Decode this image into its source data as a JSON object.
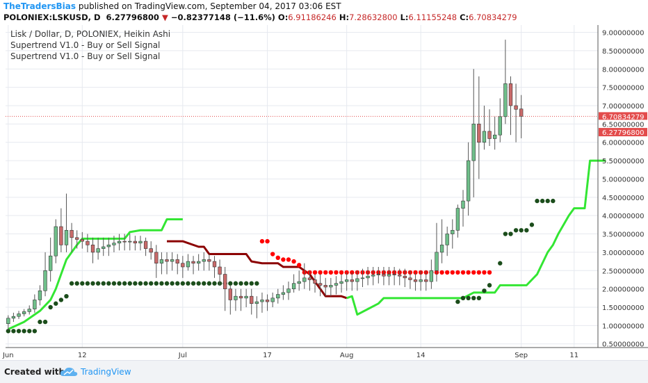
{
  "header": {
    "brand": "TheTradersBias",
    "published": " published on TradingView.com, September 04, 2017 03:06 EST",
    "symbol": "POLONIEX:LSKUSD, D",
    "last": "6.27796800",
    "change": "−0.82377148 (−11.6%)",
    "o_label": "O:",
    "o_value": "6.91186246",
    "h_label": "H:",
    "h_value": "7.28632800",
    "l_label": "L:",
    "l_value": "6.11155248",
    "c_label": "C:",
    "c_value": "6.70834279"
  },
  "legend": {
    "line1": "Lisk / Dollar, D, POLONIEX, Heikin Ashi",
    "line2": "Supertrend V1.0 - Buy or Sell Signal",
    "line3": "Supertrend V1.0 - Buy or Sell Signal"
  },
  "footer": {
    "created": "Created with",
    "brand": "TradingView"
  },
  "colors": {
    "up": "#6fbf8a",
    "down": "#c96a6a",
    "wick": "#555555",
    "supertrend_up": "#33e633",
    "supertrend_down": "#8b0000",
    "dots_up": "#1b4d1b",
    "dots_down": "#ff0000",
    "price_tag1": "#e34c4c",
    "price_tag2": "#e34c4c"
  },
  "chart_data": {
    "type": "candlestick",
    "style": "Heikin Ashi",
    "ylim": [
      0.4,
      9.2
    ],
    "y_ticks": [
      "0.50000000",
      "1.00000000",
      "1.50000000",
      "2.00000000",
      "2.50000000",
      "3.00000000",
      "3.50000000",
      "4.00000000",
      "4.50000000",
      "5.00000000",
      "5.50000000",
      "6.00000000",
      "6.50000000",
      "7.00000000",
      "7.50000000",
      "8.00000000",
      "8.50000000",
      "9.00000000"
    ],
    "x_ticks": [
      {
        "label": "Jun",
        "i": 0
      },
      {
        "label": "12",
        "i": 14
      },
      {
        "label": "Jul",
        "i": 33
      },
      {
        "label": "17",
        "i": 49
      },
      {
        "label": "Aug",
        "i": 64
      },
      {
        "label": "14",
        "i": 78
      },
      {
        "label": "Sep",
        "i": 97
      },
      {
        "label": "11",
        "i": 107
      }
    ],
    "n_slots": 112,
    "price_labels": [
      "6.70834279",
      "6.50000000",
      "6.27796800"
    ],
    "price_label_values": [
      6.708,
      6.5,
      6.278
    ],
    "candles": [
      [
        1.05,
        1.2,
        0.88,
        1.28
      ],
      [
        1.2,
        1.25,
        1.1,
        1.35
      ],
      [
        1.25,
        1.32,
        1.18,
        1.4
      ],
      [
        1.32,
        1.38,
        1.25,
        1.45
      ],
      [
        1.38,
        1.45,
        1.3,
        1.55
      ],
      [
        1.45,
        1.7,
        1.35,
        1.85
      ],
      [
        1.7,
        1.95,
        1.55,
        2.1
      ],
      [
        1.95,
        2.5,
        1.8,
        3.0
      ],
      [
        2.5,
        2.9,
        2.2,
        3.4
      ],
      [
        2.9,
        3.7,
        2.7,
        3.9
      ],
      [
        3.7,
        3.2,
        3.0,
        4.2
      ],
      [
        3.2,
        3.6,
        3.0,
        4.6
      ],
      [
        3.6,
        3.4,
        3.0,
        3.8
      ],
      [
        3.4,
        3.35,
        3.1,
        3.6
      ],
      [
        3.35,
        3.3,
        3.1,
        3.55
      ],
      [
        3.3,
        3.2,
        3.0,
        3.5
      ],
      [
        3.2,
        3.0,
        2.7,
        3.4
      ],
      [
        3.0,
        3.1,
        2.8,
        3.4
      ],
      [
        3.1,
        3.15,
        2.9,
        3.4
      ],
      [
        3.15,
        3.2,
        2.9,
        3.4
      ],
      [
        3.2,
        3.25,
        3.0,
        3.45
      ],
      [
        3.25,
        3.3,
        3.05,
        3.5
      ],
      [
        3.3,
        3.28,
        3.05,
        3.5
      ],
      [
        3.28,
        3.3,
        3.05,
        3.5
      ],
      [
        3.3,
        3.25,
        3.05,
        3.45
      ],
      [
        3.25,
        3.3,
        3.05,
        3.45
      ],
      [
        3.3,
        3.1,
        2.9,
        3.4
      ],
      [
        3.1,
        3.0,
        2.8,
        3.3
      ],
      [
        3.0,
        2.7,
        2.3,
        3.2
      ],
      [
        2.7,
        2.8,
        2.4,
        3.0
      ],
      [
        2.8,
        2.75,
        2.4,
        3.0
      ],
      [
        2.75,
        2.8,
        2.5,
        3.0
      ],
      [
        2.8,
        2.7,
        2.4,
        2.95
      ],
      [
        2.7,
        2.6,
        2.3,
        2.9
      ],
      [
        2.6,
        2.75,
        2.5,
        2.95
      ],
      [
        2.75,
        2.7,
        2.4,
        2.9
      ],
      [
        2.7,
        2.75,
        2.5,
        2.95
      ],
      [
        2.75,
        2.8,
        2.5,
        3.0
      ],
      [
        2.8,
        2.75,
        2.5,
        2.95
      ],
      [
        2.75,
        2.6,
        2.3,
        2.9
      ],
      [
        2.6,
        2.4,
        2.1,
        2.8
      ],
      [
        2.4,
        2.0,
        1.4,
        2.6
      ],
      [
        2.0,
        1.7,
        1.3,
        2.1
      ],
      [
        1.7,
        1.8,
        1.4,
        2.0
      ],
      [
        1.8,
        1.75,
        1.4,
        2.0
      ],
      [
        1.75,
        1.8,
        1.5,
        2.0
      ],
      [
        1.8,
        1.6,
        1.3,
        2.0
      ],
      [
        1.6,
        1.65,
        1.2,
        1.8
      ],
      [
        1.65,
        1.7,
        1.35,
        1.9
      ],
      [
        1.7,
        1.65,
        1.4,
        1.85
      ],
      [
        1.65,
        1.75,
        1.5,
        1.9
      ],
      [
        1.75,
        1.85,
        1.6,
        2.0
      ],
      [
        1.85,
        1.9,
        1.7,
        2.1
      ],
      [
        1.9,
        2.0,
        1.7,
        2.2
      ],
      [
        2.0,
        2.15,
        1.9,
        2.4
      ],
      [
        2.15,
        2.2,
        1.95,
        2.5
      ],
      [
        2.2,
        2.3,
        2.0,
        2.7
      ],
      [
        2.3,
        2.25,
        1.95,
        2.5
      ],
      [
        2.25,
        2.15,
        1.9,
        2.4
      ],
      [
        2.15,
        2.1,
        1.8,
        2.4
      ],
      [
        2.1,
        2.05,
        1.8,
        2.3
      ],
      [
        2.05,
        2.1,
        1.8,
        2.3
      ],
      [
        2.1,
        2.15,
        1.85,
        2.35
      ],
      [
        2.15,
        2.2,
        1.9,
        2.4
      ],
      [
        2.2,
        2.25,
        1.95,
        2.45
      ],
      [
        2.25,
        2.2,
        1.95,
        2.45
      ],
      [
        2.2,
        2.28,
        1.95,
        2.5
      ],
      [
        2.28,
        2.3,
        2.05,
        2.55
      ],
      [
        2.3,
        2.35,
        2.1,
        2.6
      ],
      [
        2.35,
        2.38,
        2.1,
        2.6
      ],
      [
        2.38,
        2.4,
        2.15,
        2.6
      ],
      [
        2.4,
        2.35,
        2.1,
        2.6
      ],
      [
        2.35,
        2.4,
        2.1,
        2.6
      ],
      [
        2.4,
        2.38,
        2.1,
        2.6
      ],
      [
        2.38,
        2.35,
        2.1,
        2.55
      ],
      [
        2.35,
        2.3,
        2.05,
        2.55
      ],
      [
        2.3,
        2.25,
        2.0,
        2.5
      ],
      [
        2.25,
        2.2,
        1.95,
        2.45
      ],
      [
        2.2,
        2.25,
        1.95,
        2.5
      ],
      [
        2.25,
        2.2,
        1.95,
        2.5
      ],
      [
        2.2,
        2.5,
        2.0,
        2.8
      ],
      [
        2.5,
        3.0,
        2.2,
        3.8
      ],
      [
        3.0,
        3.2,
        2.7,
        3.9
      ],
      [
        3.2,
        3.5,
        2.9,
        3.7
      ],
      [
        3.5,
        3.6,
        3.1,
        3.9
      ],
      [
        3.6,
        4.2,
        3.4,
        4.3
      ],
      [
        4.2,
        4.4,
        3.7,
        4.7
      ],
      [
        4.4,
        5.5,
        4.0,
        6.0
      ],
      [
        5.5,
        6.5,
        4.5,
        8.0
      ],
      [
        6.5,
        6.0,
        5.0,
        7.8
      ],
      [
        6.0,
        6.3,
        5.8,
        7.0
      ],
      [
        6.3,
        6.1,
        5.9,
        6.9
      ],
      [
        6.1,
        6.2,
        5.8,
        6.7
      ],
      [
        6.2,
        6.7,
        6.0,
        7.2
      ],
      [
        6.7,
        7.6,
        6.5,
        8.8
      ],
      [
        7.6,
        7.0,
        6.2,
        7.8
      ],
      [
        7.0,
        6.9,
        6.0,
        7.6
      ],
      [
        6.91,
        6.71,
        6.11,
        7.29
      ]
    ],
    "supertrend_segments": [
      {
        "trend": "up",
        "points": [
          [
            0,
            0.9
          ],
          [
            3,
            1.1
          ],
          [
            6,
            1.4
          ],
          [
            8,
            1.7
          ],
          [
            9,
            2.0
          ],
          [
            10,
            2.4
          ],
          [
            11,
            2.8
          ],
          [
            12,
            3.0
          ],
          [
            13,
            3.2
          ],
          [
            14,
            3.37
          ],
          [
            22,
            3.37
          ],
          [
            23,
            3.55
          ],
          [
            25,
            3.6
          ],
          [
            29,
            3.6
          ],
          [
            30,
            3.9
          ],
          [
            33,
            3.9
          ]
        ]
      },
      {
        "trend": "down",
        "points": [
          [
            30,
            3.3
          ],
          [
            33,
            3.3
          ],
          [
            36,
            3.15
          ],
          [
            37,
            3.15
          ],
          [
            38,
            2.95
          ],
          [
            45,
            2.95
          ],
          [
            46,
            2.75
          ],
          [
            48,
            2.7
          ],
          [
            51,
            2.7
          ],
          [
            52,
            2.6
          ],
          [
            55,
            2.6
          ],
          [
            57,
            2.4
          ],
          [
            58,
            2.2
          ],
          [
            59,
            2.0
          ],
          [
            60,
            1.8
          ],
          [
            63,
            1.8
          ],
          [
            64,
            1.75
          ]
        ]
      },
      {
        "trend": "up",
        "points": [
          [
            64,
            1.75
          ],
          [
            65,
            1.8
          ],
          [
            66,
            1.3
          ],
          [
            68,
            1.45
          ],
          [
            70,
            1.6
          ],
          [
            71,
            1.75
          ],
          [
            76,
            1.75
          ],
          [
            79,
            1.75
          ],
          [
            82,
            1.75
          ],
          [
            86,
            1.75
          ],
          [
            88,
            1.9
          ],
          [
            92,
            1.9
          ],
          [
            93,
            2.1
          ],
          [
            98,
            2.1
          ],
          [
            100,
            2.4
          ],
          [
            101,
            2.7
          ],
          [
            102,
            3.0
          ],
          [
            103,
            3.2
          ],
          [
            104,
            3.5
          ],
          [
            105,
            3.75
          ],
          [
            106,
            4.0
          ],
          [
            107,
            4.2
          ],
          [
            109,
            4.2
          ],
          [
            110,
            5.5
          ],
          [
            113,
            5.5
          ]
        ]
      }
    ],
    "dot_series": [
      {
        "trend": "up",
        "points": [
          [
            0,
            0.85
          ],
          [
            1,
            0.85
          ],
          [
            2,
            0.85
          ],
          [
            3,
            0.85
          ],
          [
            4,
            0.85
          ],
          [
            5,
            0.85
          ],
          [
            6,
            1.1
          ],
          [
            7,
            1.1
          ],
          [
            8,
            1.5
          ],
          [
            9,
            1.6
          ],
          [
            10,
            1.7
          ],
          [
            11,
            1.8
          ],
          [
            12,
            2.15
          ],
          [
            13,
            2.15
          ],
          [
            14,
            2.15
          ],
          [
            15,
            2.15
          ],
          [
            16,
            2.15
          ],
          [
            17,
            2.15
          ],
          [
            18,
            2.15
          ],
          [
            19,
            2.15
          ],
          [
            20,
            2.15
          ],
          [
            21,
            2.15
          ],
          [
            22,
            2.15
          ],
          [
            23,
            2.15
          ],
          [
            24,
            2.15
          ],
          [
            25,
            2.15
          ],
          [
            26,
            2.15
          ],
          [
            27,
            2.15
          ],
          [
            28,
            2.15
          ],
          [
            29,
            2.15
          ],
          [
            30,
            2.15
          ],
          [
            31,
            2.15
          ],
          [
            32,
            2.15
          ],
          [
            33,
            2.15
          ],
          [
            34,
            2.15
          ],
          [
            35,
            2.15
          ],
          [
            36,
            2.15
          ],
          [
            37,
            2.15
          ],
          [
            38,
            2.15
          ],
          [
            39,
            2.15
          ],
          [
            40,
            2.15
          ],
          [
            41,
            2.15
          ],
          [
            42,
            2.15
          ],
          [
            43,
            2.15
          ],
          [
            44,
            2.15
          ],
          [
            45,
            2.15
          ],
          [
            46,
            2.15
          ],
          [
            47,
            2.15
          ],
          [
            85,
            1.65
          ],
          [
            86,
            1.75
          ],
          [
            87,
            1.75
          ],
          [
            88,
            1.75
          ],
          [
            89,
            1.75
          ],
          [
            90,
            1.95
          ],
          [
            91,
            2.1
          ],
          [
            93,
            2.7
          ],
          [
            94,
            3.5
          ],
          [
            95,
            3.5
          ],
          [
            96,
            3.6
          ],
          [
            97,
            3.6
          ],
          [
            98,
            3.6
          ],
          [
            99,
            3.75
          ],
          [
            100,
            4.4
          ],
          [
            101,
            4.4
          ],
          [
            102,
            4.4
          ],
          [
            103,
            4.4
          ]
        ]
      },
      {
        "trend": "down",
        "points": [
          [
            48,
            3.3
          ],
          [
            49,
            3.3
          ],
          [
            50,
            2.95
          ],
          [
            51,
            2.85
          ],
          [
            52,
            2.8
          ],
          [
            53,
            2.8
          ],
          [
            54,
            2.75
          ],
          [
            55,
            2.65
          ],
          [
            56,
            2.45
          ],
          [
            57,
            2.45
          ],
          [
            58,
            2.45
          ],
          [
            59,
            2.45
          ],
          [
            60,
            2.45
          ],
          [
            61,
            2.45
          ],
          [
            62,
            2.45
          ],
          [
            63,
            2.45
          ],
          [
            64,
            2.45
          ],
          [
            65,
            2.45
          ],
          [
            66,
            2.45
          ],
          [
            67,
            2.45
          ],
          [
            68,
            2.45
          ],
          [
            69,
            2.45
          ],
          [
            70,
            2.45
          ],
          [
            71,
            2.45
          ],
          [
            72,
            2.45
          ],
          [
            73,
            2.45
          ],
          [
            74,
            2.45
          ],
          [
            75,
            2.45
          ],
          [
            76,
            2.45
          ],
          [
            77,
            2.45
          ],
          [
            78,
            2.45
          ],
          [
            79,
            2.45
          ],
          [
            80,
            2.45
          ],
          [
            81,
            2.45
          ],
          [
            82,
            2.45
          ],
          [
            83,
            2.45
          ],
          [
            84,
            2.45
          ],
          [
            85,
            2.45
          ],
          [
            86,
            2.45
          ],
          [
            87,
            2.45
          ],
          [
            88,
            2.45
          ],
          [
            89,
            2.45
          ],
          [
            90,
            2.45
          ],
          [
            91,
            2.45
          ]
        ]
      }
    ]
  }
}
